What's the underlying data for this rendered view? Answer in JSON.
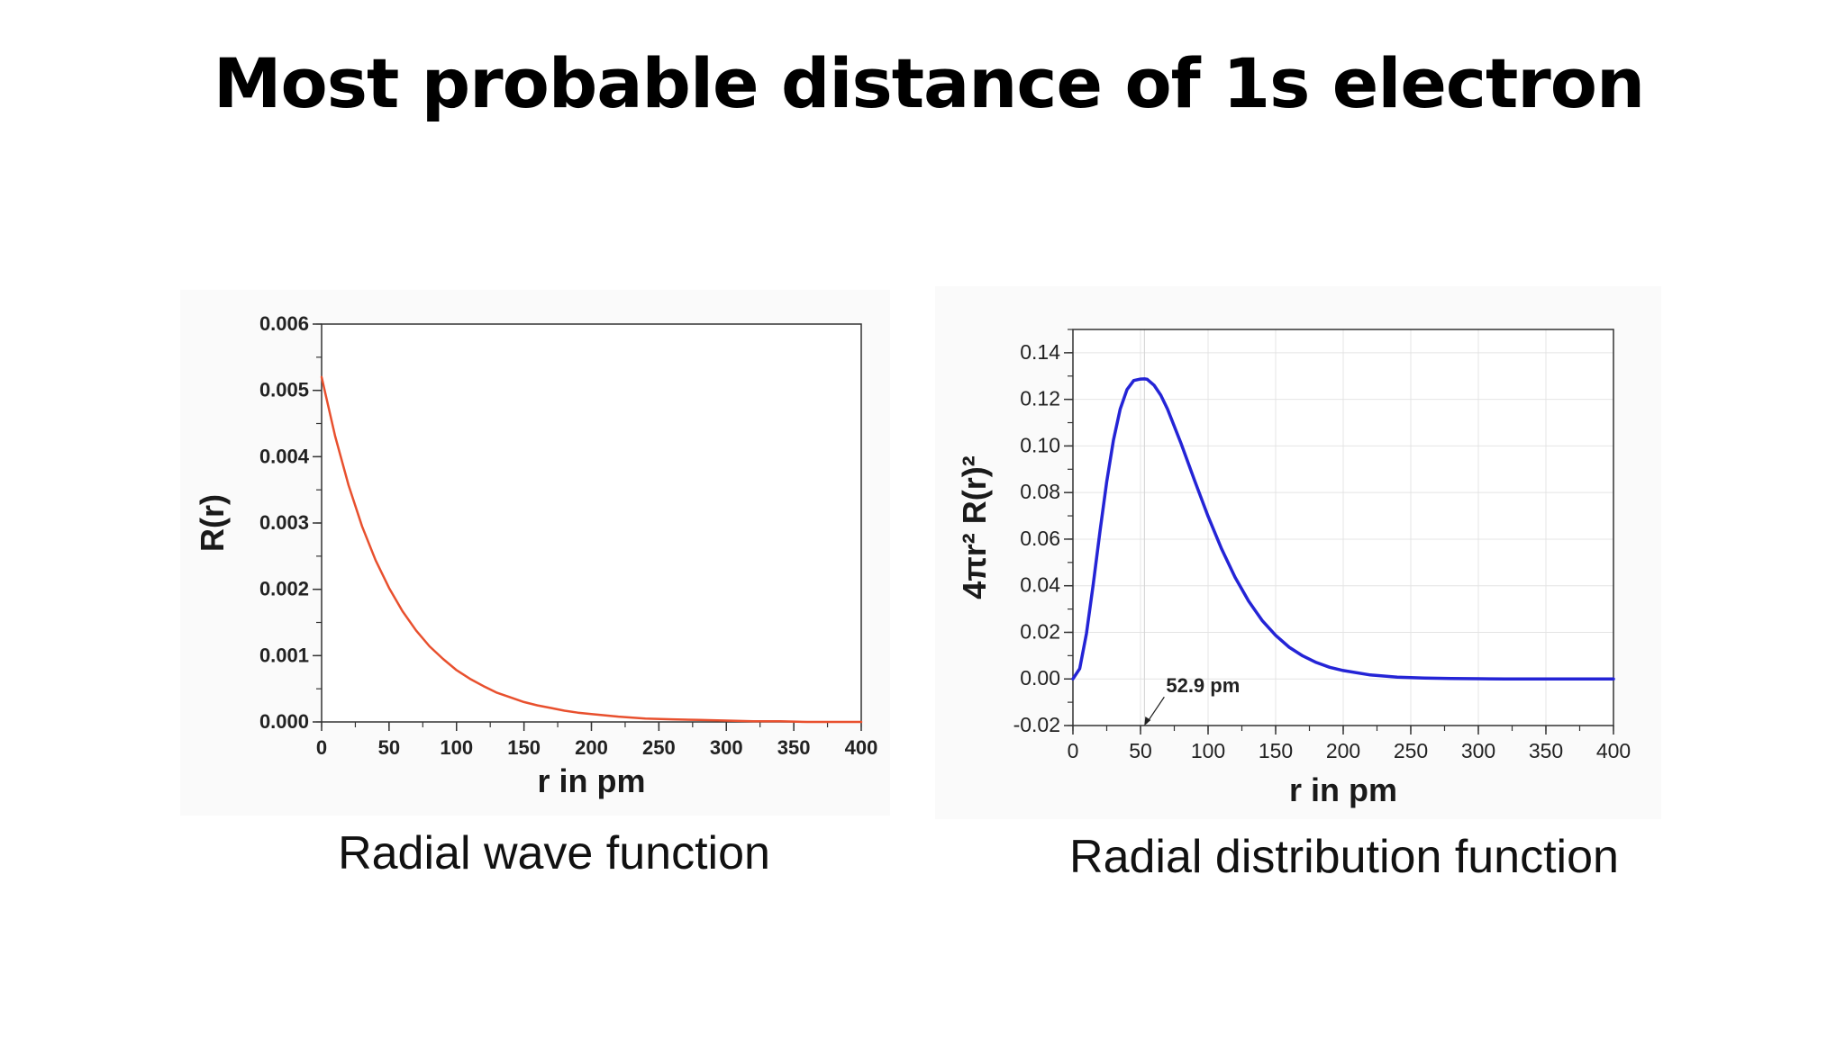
{
  "slide": {
    "title": "Most probable distance of 1s electron",
    "caption_left": "Radial wave function",
    "caption_right": "Radial distribution function"
  },
  "chart_data": [
    {
      "type": "line",
      "xlabel": "r in pm",
      "ylabel": "R(r)",
      "xlim": [
        0,
        400
      ],
      "ylim": [
        0,
        0.006
      ],
      "xticks": [
        0,
        50,
        100,
        150,
        200,
        250,
        300,
        350,
        400
      ],
      "xtick_labels": [
        "0",
        "50",
        "100",
        "150",
        "200",
        "250",
        "300",
        "350",
        "400"
      ],
      "yticks": [
        0,
        0.001,
        0.002,
        0.003,
        0.004,
        0.005,
        0.006
      ],
      "ytick_labels": [
        "0.000",
        "0.001",
        "0.002",
        "0.003",
        "0.004",
        "0.005",
        "0.006"
      ],
      "grid": false,
      "color": "#e8502e",
      "series": [
        {
          "x": [
            0,
            10,
            20,
            30,
            40,
            50,
            60,
            70,
            80,
            90,
            100,
            110,
            120,
            130,
            140,
            150,
            160,
            170,
            180,
            190,
            200,
            220,
            240,
            260,
            280,
            300,
            320,
            340,
            360,
            380,
            400
          ],
          "y": [
            0.0052,
            0.00431,
            0.00357,
            0.00295,
            0.00244,
            0.00202,
            0.00167,
            0.00138,
            0.00114,
            0.00095,
            0.00078,
            0.00065,
            0.00054,
            0.00044,
            0.00037,
            0.0003,
            0.00025,
            0.00021,
            0.00017,
            0.00014,
            0.00012,
            8e-05,
            5e-05,
            4e-05,
            3e-05,
            2e-05,
            1e-05,
            1e-05,
            0.0,
            0.0,
            0.0
          ]
        }
      ]
    },
    {
      "type": "line",
      "xlabel": "r in pm",
      "ylabel": "4πr² R(r)²",
      "xlim": [
        0,
        400
      ],
      "ylim": [
        -0.02,
        0.15
      ],
      "xticks": [
        0,
        50,
        100,
        150,
        200,
        250,
        300,
        350,
        400
      ],
      "xtick_labels": [
        "0",
        "50",
        "100",
        "150",
        "200",
        "250",
        "300",
        "350",
        "400"
      ],
      "yticks": [
        -0.02,
        0.0,
        0.02,
        0.04,
        0.06,
        0.08,
        0.1,
        0.12,
        0.14
      ],
      "ytick_labels": [
        "-0.02",
        "0.00",
        "0.02",
        "0.04",
        "0.06",
        "0.08",
        "0.10",
        "0.12",
        "0.14"
      ],
      "grid": true,
      "color": "#2424d6",
      "annotation": {
        "text": "52.9 pm",
        "x": 52.9
      },
      "series": [
        {
          "x": [
            0,
            5,
            10,
            15,
            20,
            25,
            30,
            35,
            40,
            45,
            50,
            52.9,
            55,
            60,
            65,
            70,
            80,
            90,
            100,
            110,
            120,
            130,
            140,
            150,
            160,
            170,
            180,
            190,
            200,
            220,
            240,
            260,
            280,
            300,
            320,
            340,
            360,
            380,
            400
          ],
          "y": [
            0.0,
            0.0044,
            0.0195,
            0.0406,
            0.0633,
            0.0847,
            0.1026,
            0.1159,
            0.1242,
            0.1281,
            0.1287,
            0.1288,
            0.1286,
            0.1261,
            0.1218,
            0.1158,
            0.1011,
            0.0852,
            0.0698,
            0.0558,
            0.0436,
            0.0334,
            0.0251,
            0.0187,
            0.0136,
            0.0099,
            0.0071,
            0.005,
            0.0036,
            0.0017,
            0.0008,
            0.0004,
            0.0002,
            0.0001,
            0.0,
            0.0,
            0.0,
            0.0,
            0.0
          ]
        }
      ]
    }
  ]
}
